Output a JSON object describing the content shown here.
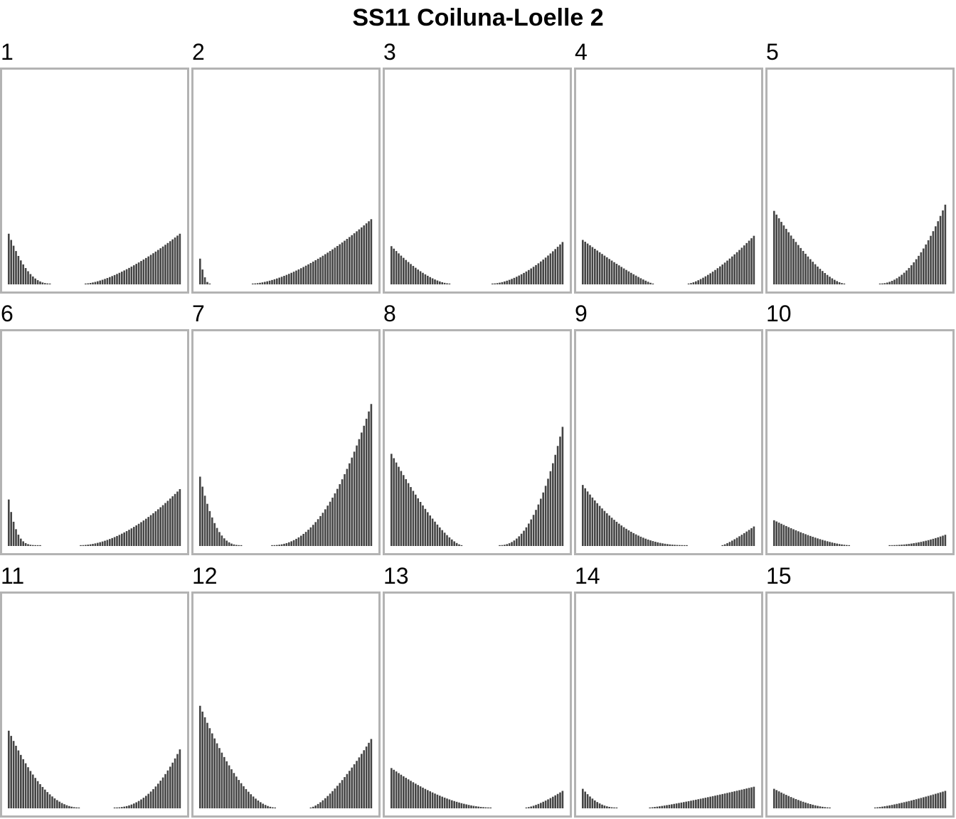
{
  "title": "SS11 Coiluna-Loelle 2",
  "colors": {
    "bar": "#444444",
    "frame": "#b3b3b3",
    "background": "#ffffff"
  },
  "chart_data": {
    "type": "bar",
    "title": "SS11 Coiluna-Loelle 2",
    "layout": "small-multiples 3 rows x 5 columns",
    "ylim": [
      0,
      1
    ],
    "grid": false,
    "note": "Each panel has a descending left bar cluster and an ascending right bar cluster; values are relative bar heights (fraction of panel height).",
    "panels": [
      {
        "label": "1",
        "left": {
          "peak": 0.24,
          "count": 18,
          "decay": 2.2
        },
        "right": {
          "peak": 0.24,
          "count": 40,
          "growth": 1.5
        }
      },
      {
        "label": "2",
        "left": {
          "peak": 0.12,
          "count": 5,
          "decay": 2.0
        },
        "right": {
          "peak": 0.31,
          "count": 50,
          "growth": 1.6
        }
      },
      {
        "label": "3",
        "left": {
          "peak": 0.18,
          "count": 25,
          "decay": 1.6
        },
        "right": {
          "peak": 0.2,
          "count": 30,
          "growth": 1.7
        }
      },
      {
        "label": "4",
        "left": {
          "peak": 0.21,
          "count": 30,
          "decay": 1.2
        },
        "right": {
          "peak": 0.23,
          "count": 28,
          "growth": 1.4
        }
      },
      {
        "label": "5",
        "left": {
          "peak": 0.35,
          "count": 30,
          "decay": 1.5
        },
        "right": {
          "peak": 0.38,
          "count": 28,
          "growth": 2.0
        }
      },
      {
        "label": "6",
        "left": {
          "peak": 0.22,
          "count": 14,
          "decay": 4.0
        },
        "right": {
          "peak": 0.27,
          "count": 42,
          "growth": 1.8
        }
      },
      {
        "label": "7",
        "left": {
          "peak": 0.33,
          "count": 18,
          "decay": 2.6
        },
        "right": {
          "peak": 0.68,
          "count": 42,
          "growth": 2.2
        }
      },
      {
        "label": "8",
        "left": {
          "peak": 0.44,
          "count": 30,
          "decay": 1.4
        },
        "right": {
          "peak": 0.57,
          "count": 27,
          "growth": 2.2
        }
      },
      {
        "label": "9",
        "left": {
          "peak": 0.29,
          "count": 44,
          "decay": 2.4
        },
        "right": {
          "peak": 0.09,
          "count": 14,
          "growth": 1.2
        }
      },
      {
        "label": "10",
        "left": {
          "peak": 0.12,
          "count": 32,
          "decay": 1.5
        },
        "right": {
          "peak": 0.05,
          "count": 24,
          "growth": 2.0
        }
      },
      {
        "label": "11",
        "left": {
          "peak": 0.37,
          "count": 30,
          "decay": 2.0
        },
        "right": {
          "peak": 0.28,
          "count": 28,
          "growth": 2.2
        }
      },
      {
        "label": "12",
        "left": {
          "peak": 0.49,
          "count": 32,
          "decay": 1.8
        },
        "right": {
          "peak": 0.33,
          "count": 26,
          "growth": 1.4
        }
      },
      {
        "label": "13",
        "left": {
          "peak": 0.19,
          "count": 42,
          "decay": 1.8
        },
        "right": {
          "peak": 0.08,
          "count": 16,
          "growth": 1.4
        }
      },
      {
        "label": "14",
        "left": {
          "peak": 0.09,
          "count": 15,
          "decay": 2.2
        },
        "right": {
          "peak": 0.1,
          "count": 44,
          "growth": 1.2
        }
      },
      {
        "label": "15",
        "left": {
          "peak": 0.09,
          "count": 24,
          "decay": 1.6
        },
        "right": {
          "peak": 0.08,
          "count": 30,
          "growth": 1.3
        }
      }
    ]
  }
}
